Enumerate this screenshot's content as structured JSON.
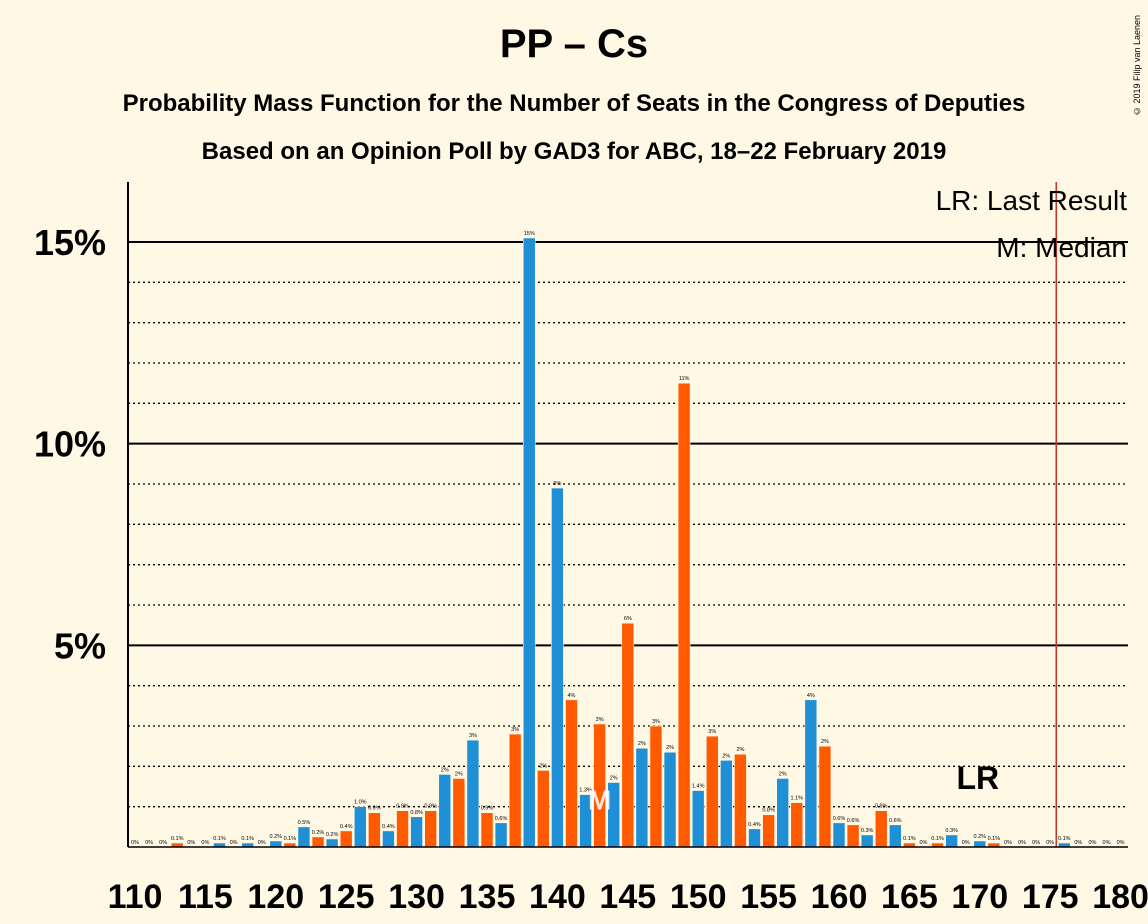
{
  "title": "PP – Cs",
  "subtitle1": "Probability Mass Function for the Number of Seats in the Congress of Deputies",
  "subtitle2": "Based on an Opinion Poll by GAD3 for ABC, 18–22 February 2019",
  "copyright": "© 2019 Filip van Laenen",
  "colors": {
    "background": "#fff8e5",
    "blue": "#1f8fd6",
    "orange": "#ff5a00",
    "last_result_line": "#c0392b"
  },
  "chart_data": {
    "type": "bar",
    "x_min": 110,
    "x_max": 180,
    "xticks": [
      110,
      115,
      120,
      125,
      130,
      135,
      140,
      145,
      150,
      155,
      160,
      165,
      170,
      175,
      180
    ],
    "y_max": 16.5,
    "yticks": [
      {
        "value": 5,
        "label": "5%"
      },
      {
        "value": 10,
        "label": "10%"
      },
      {
        "value": 15,
        "label": "15%"
      }
    ],
    "minor_gridlines": [
      1,
      2,
      3,
      4,
      6,
      7,
      8,
      9,
      11,
      12,
      13,
      14
    ],
    "legend": {
      "position": "top-right",
      "last_result": "LR: Last Result",
      "median": "M: Median"
    },
    "last_result": {
      "seat": 176,
      "label": "LR",
      "label_seat": 170
    },
    "median": {
      "seat": 143,
      "label": "M"
    },
    "bars": [
      {
        "seat": 110,
        "value": 0.0,
        "label": "0%"
      },
      {
        "seat": 111,
        "value": 0.0,
        "label": "0%"
      },
      {
        "seat": 112,
        "value": 0.0,
        "label": "0%"
      },
      {
        "seat": 113,
        "value": 0.1,
        "label": "0.1%"
      },
      {
        "seat": 114,
        "value": 0.0,
        "label": "0%"
      },
      {
        "seat": 115,
        "value": 0.0,
        "label": "0%"
      },
      {
        "seat": 116,
        "value": 0.1,
        "label": "0.1%"
      },
      {
        "seat": 117,
        "value": 0.0,
        "label": "0%"
      },
      {
        "seat": 118,
        "value": 0.1,
        "label": "0.1%"
      },
      {
        "seat": 119,
        "value": 0.0,
        "label": "0%"
      },
      {
        "seat": 120,
        "value": 0.15,
        "label": "0.2%"
      },
      {
        "seat": 121,
        "value": 0.1,
        "label": "0.1%"
      },
      {
        "seat": 122,
        "value": 0.5,
        "label": "0.5%"
      },
      {
        "seat": 123,
        "value": 0.25,
        "label": "0.2%"
      },
      {
        "seat": 124,
        "value": 0.2,
        "label": "0.2%"
      },
      {
        "seat": 125,
        "value": 0.4,
        "label": "0.4%"
      },
      {
        "seat": 126,
        "value": 1.0,
        "label": "1.0%"
      },
      {
        "seat": 127,
        "value": 0.85,
        "label": "0.9%"
      },
      {
        "seat": 128,
        "value": 0.4,
        "label": "0.4%"
      },
      {
        "seat": 129,
        "value": 0.9,
        "label": "0.9%"
      },
      {
        "seat": 130,
        "value": 0.75,
        "label": "0.8%"
      },
      {
        "seat": 131,
        "value": 0.9,
        "label": "0.9%"
      },
      {
        "seat": 132,
        "value": 1.8,
        "label": "2%"
      },
      {
        "seat": 133,
        "value": 1.7,
        "label": "2%"
      },
      {
        "seat": 134,
        "value": 2.65,
        "label": "3%"
      },
      {
        "seat": 135,
        "value": 0.85,
        "label": "0.9%"
      },
      {
        "seat": 136,
        "value": 0.6,
        "label": "0.6%"
      },
      {
        "seat": 137,
        "value": 2.8,
        "label": "3%"
      },
      {
        "seat": 138,
        "value": 15.1,
        "label": "15%"
      },
      {
        "seat": 139,
        "value": 1.9,
        "label": "2%"
      },
      {
        "seat": 140,
        "value": 8.9,
        "label": "9%"
      },
      {
        "seat": 141,
        "value": 3.65,
        "label": "4%"
      },
      {
        "seat": 142,
        "value": 1.3,
        "label": "1.3%"
      },
      {
        "seat": 143,
        "value": 3.05,
        "label": "3%"
      },
      {
        "seat": 144,
        "value": 1.6,
        "label": "2%"
      },
      {
        "seat": 145,
        "value": 5.55,
        "label": "6%"
      },
      {
        "seat": 146,
        "value": 2.45,
        "label": "2%"
      },
      {
        "seat": 147,
        "value": 3.0,
        "label": "3%"
      },
      {
        "seat": 148,
        "value": 2.35,
        "label": "2%"
      },
      {
        "seat": 149,
        "value": 11.5,
        "label": "11%"
      },
      {
        "seat": 150,
        "value": 1.4,
        "label": "1.4%"
      },
      {
        "seat": 151,
        "value": 2.75,
        "label": "3%"
      },
      {
        "seat": 152,
        "value": 2.15,
        "label": "2%"
      },
      {
        "seat": 153,
        "value": 2.3,
        "label": "2%"
      },
      {
        "seat": 154,
        "value": 0.45,
        "label": "0.4%"
      },
      {
        "seat": 155,
        "value": 0.8,
        "label": "0.8%"
      },
      {
        "seat": 156,
        "value": 1.7,
        "label": "2%"
      },
      {
        "seat": 157,
        "value": 1.1,
        "label": "1.1%"
      },
      {
        "seat": 158,
        "value": 3.65,
        "label": "4%"
      },
      {
        "seat": 159,
        "value": 2.5,
        "label": "2%"
      },
      {
        "seat": 160,
        "value": 0.6,
        "label": "0.6%"
      },
      {
        "seat": 161,
        "value": 0.55,
        "label": "0.6%"
      },
      {
        "seat": 162,
        "value": 0.3,
        "label": "0.3%"
      },
      {
        "seat": 163,
        "value": 0.9,
        "label": "0.9%"
      },
      {
        "seat": 164,
        "value": 0.55,
        "label": "0.6%"
      },
      {
        "seat": 165,
        "value": 0.1,
        "label": "0.1%"
      },
      {
        "seat": 166,
        "value": 0.0,
        "label": "0%"
      },
      {
        "seat": 167,
        "value": 0.1,
        "label": "0.1%"
      },
      {
        "seat": 168,
        "value": 0.3,
        "label": "0.3%"
      },
      {
        "seat": 169,
        "value": 0.0,
        "label": "0%"
      },
      {
        "seat": 170,
        "value": 0.15,
        "label": "0.2%"
      },
      {
        "seat": 171,
        "value": 0.1,
        "label": "0.1%"
      },
      {
        "seat": 172,
        "value": 0.0,
        "label": "0%"
      },
      {
        "seat": 173,
        "value": 0.0,
        "label": "0%"
      },
      {
        "seat": 174,
        "value": 0.0,
        "label": "0%"
      },
      {
        "seat": 175,
        "value": 0.0,
        "label": "0%"
      },
      {
        "seat": 176,
        "value": 0.1,
        "label": "0.1%"
      },
      {
        "seat": 177,
        "value": 0.0,
        "label": "0%"
      },
      {
        "seat": 178,
        "value": 0.0,
        "label": "0%"
      },
      {
        "seat": 179,
        "value": 0.0,
        "label": "0%"
      },
      {
        "seat": 180,
        "value": 0.0,
        "label": "0%"
      }
    ]
  }
}
